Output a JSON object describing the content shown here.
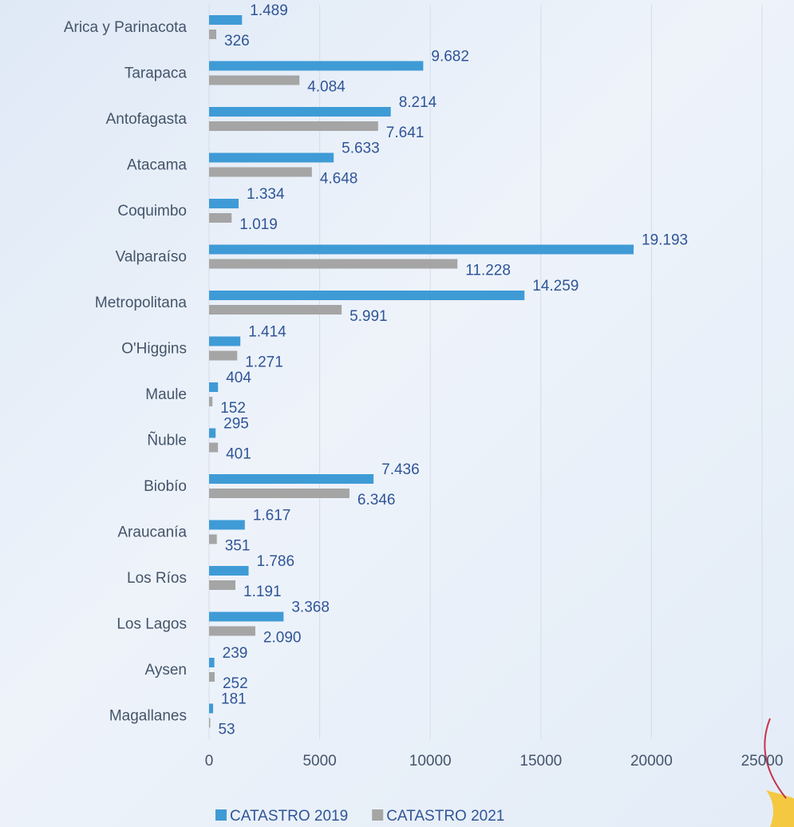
{
  "chart_data": {
    "type": "hbar",
    "categories": [
      "Arica y Parinacota",
      "Tarapaca",
      "Antofagasta",
      "Atacama",
      "Coquimbo",
      "Valparaíso",
      "Metropolitana",
      "O'Higgins",
      "Maule",
      "Ñuble",
      "Biobío",
      "Araucanía",
      "Los Ríos",
      "Los Lagos",
      "Aysen",
      "Magallanes"
    ],
    "series": [
      {
        "name": "CATASTRO 2019",
        "color": "#3f9bd6",
        "values": [
          1489,
          9682,
          8214,
          5633,
          1334,
          19193,
          14259,
          1414,
          404,
          295,
          7436,
          1617,
          1786,
          3368,
          239,
          181
        ],
        "value_labels": [
          "1.489",
          "9.682",
          "8.214",
          "5.633",
          "1.334",
          "19.193",
          "14.259",
          "1.414",
          "404",
          "295",
          "7.436",
          "1.617",
          "1.786",
          "3.368",
          "239",
          "181"
        ]
      },
      {
        "name": "CATASTRO 2021",
        "color": "#a5a5a5",
        "values": [
          326,
          4084,
          7641,
          4648,
          1019,
          11228,
          5991,
          1271,
          152,
          401,
          6346,
          351,
          1191,
          2090,
          252,
          53
        ],
        "value_labels": [
          "326",
          "4.084",
          "7.641",
          "4.648",
          "1.019",
          "11.228",
          "5.991",
          "1.271",
          "152",
          "401",
          "6.346",
          "351",
          "1.191",
          "2.090",
          "252",
          "53"
        ]
      }
    ],
    "xlim": [
      0,
      25000
    ],
    "xticks": [
      0,
      5000,
      10000,
      15000,
      20000,
      25000
    ],
    "grid": true
  }
}
